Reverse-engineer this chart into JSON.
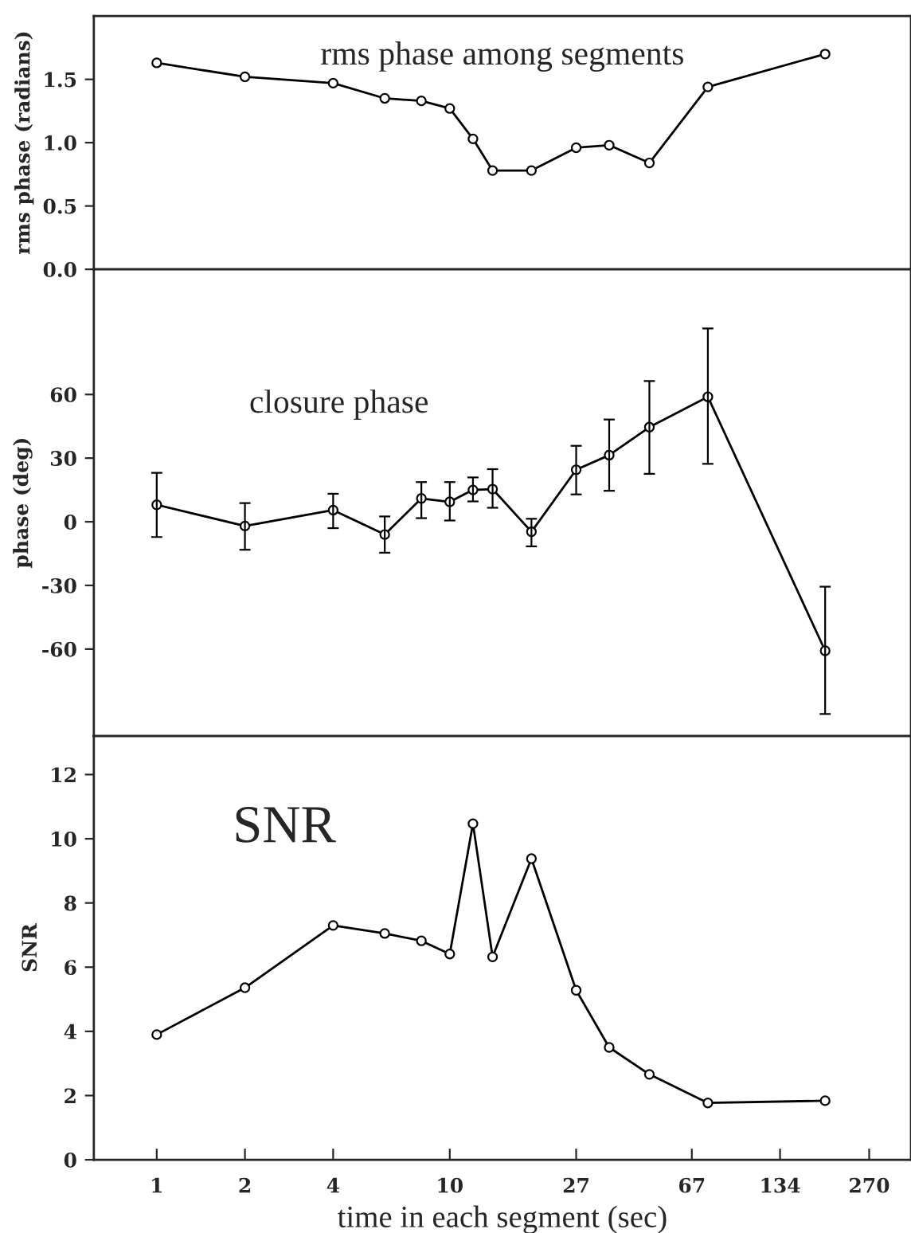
{
  "chart_data": [
    {
      "type": "line",
      "title": "rms phase among segments",
      "ylabel": "rms phase (radians)",
      "x": [
        1,
        2,
        4,
        6,
        8,
        10,
        12,
        14,
        19,
        27,
        35,
        48,
        76,
        191
      ],
      "values": [
        1.63,
        1.52,
        1.47,
        1.35,
        1.33,
        1.27,
        1.03,
        0.78,
        0.78,
        0.96,
        0.98,
        0.84,
        1.44,
        1.7
      ],
      "color": "#000000",
      "marker": "circle",
      "log": "x",
      "xlim": [
        0.61,
        375
      ],
      "xticks": [
        1,
        2,
        4,
        10,
        27,
        67,
        134,
        270
      ],
      "ylim": [
        0,
        2.0
      ],
      "yticks": [
        {
          "value": 0,
          "label": "0.0"
        },
        0.5,
        {
          "value": 1,
          "label": "1.0"
        },
        1.5
      ],
      "tick_labels": "y",
      "grid": false,
      "legend": false
    },
    {
      "type": "line",
      "title": "closure phase",
      "ylabel": "phase (deg)",
      "x": [
        1,
        2,
        4,
        6,
        8,
        10,
        12,
        14,
        19,
        27,
        35,
        48,
        76,
        191
      ],
      "values": [
        8,
        -2,
        5.5,
        -6,
        11,
        9.4,
        15,
        15.4,
        -4.7,
        24.5,
        31.4,
        44.6,
        58.9,
        -60.8
      ],
      "errors": [
        [
          -7.2,
          23.1
        ],
        [
          -13.2,
          8.8
        ],
        [
          -3,
          13.2
        ],
        [
          -14.6,
          2.5
        ],
        [
          1.7,
          18.7
        ],
        [
          0.6,
          18.7
        ],
        [
          9.6,
          20.9
        ],
        [
          6.6,
          24.8
        ],
        [
          -11.6,
          1.4
        ],
        [
          12.9,
          35.8
        ],
        [
          14.6,
          48.2
        ],
        [
          22.6,
          66.3
        ],
        [
          27.3,
          91.1
        ],
        [
          -90.6,
          -30.6
        ]
      ],
      "color": "#000000",
      "marker": "circle",
      "log": "x",
      "xlim": [
        0.61,
        375
      ],
      "xticks": [
        1,
        2,
        4,
        10,
        27,
        67,
        134,
        270
      ],
      "ylim": [
        -101,
        119
      ],
      "yticks": [
        -60,
        -30,
        0,
        30,
        60
      ],
      "tick_labels": "y",
      "grid": false,
      "legend": false
    },
    {
      "type": "line",
      "title": "SNR",
      "ylabel": "SNR",
      "xlabel": "time in each segment (sec)",
      "x": [
        1,
        2,
        4,
        6,
        8,
        10,
        12,
        14,
        19,
        27,
        35,
        48,
        76,
        191
      ],
      "values": [
        3.9,
        5.36,
        7.3,
        7.05,
        6.82,
        6.41,
        10.47,
        6.32,
        9.38,
        5.28,
        3.5,
        2.66,
        1.77,
        1.84
      ],
      "color": "#000000",
      "marker": "circle",
      "log": "x",
      "xlim": [
        0.61,
        375
      ],
      "xticks": [
        1,
        2,
        4,
        10,
        27,
        67,
        134,
        270
      ],
      "ylim": [
        0,
        13.2
      ],
      "yticks": [
        0,
        2,
        4,
        6,
        8,
        10,
        12
      ],
      "grid": false,
      "legend": false
    }
  ]
}
